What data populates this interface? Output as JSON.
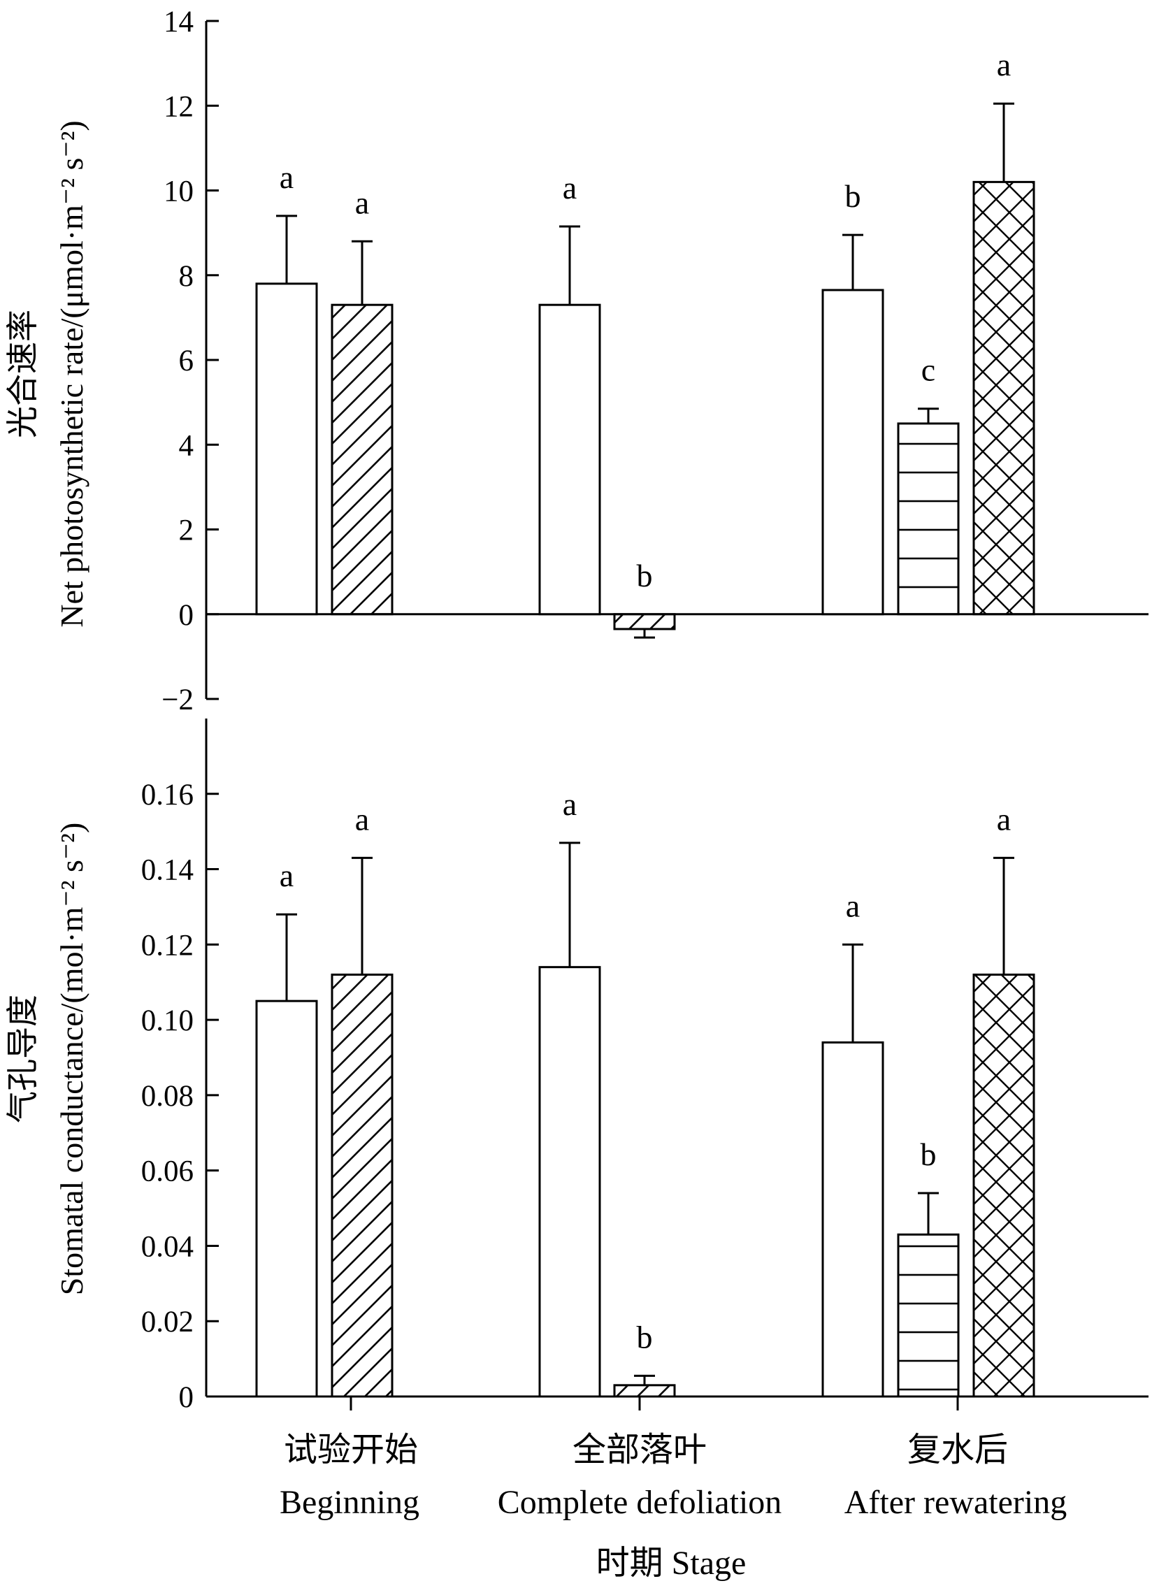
{
  "chart_data": [
    {
      "type": "bar",
      "ylabel_zh": "光合速率",
      "ylabel_en": "Net photosynthetic rate/(μmol·m⁻² s⁻²)",
      "ylim": [
        -2,
        14
      ],
      "yticks": [
        -2,
        0,
        2,
        4,
        6,
        8,
        10,
        12,
        14
      ],
      "ytick_labels": [
        "−2",
        "0",
        "2",
        "4",
        "6",
        "8",
        "10",
        "12",
        "14"
      ],
      "categories": [
        "Beginning",
        "Complete defoliation",
        "After rewatering"
      ],
      "bars": [
        {
          "group": 0,
          "slot": 0,
          "pattern": "plain",
          "value": 7.8,
          "error": 1.6,
          "sig": "a"
        },
        {
          "group": 0,
          "slot": 1,
          "pattern": "diagonal",
          "value": 7.3,
          "error": 1.5,
          "sig": "a"
        },
        {
          "group": 1,
          "slot": 0,
          "pattern": "plain",
          "value": 7.3,
          "error": 1.85,
          "sig": "a"
        },
        {
          "group": 1,
          "slot": 1,
          "pattern": "diagonal",
          "value": -0.35,
          "error": 0.2,
          "sig": "b"
        },
        {
          "group": 2,
          "slot": 0,
          "pattern": "plain",
          "value": 7.65,
          "error": 1.3,
          "sig": "b"
        },
        {
          "group": 2,
          "slot": 1,
          "pattern": "horizontal",
          "value": 4.5,
          "error": 0.35,
          "sig": "c"
        },
        {
          "group": 2,
          "slot": 2,
          "pattern": "crosshatch",
          "value": 10.2,
          "error": 1.85,
          "sig": "a"
        }
      ]
    },
    {
      "type": "bar",
      "ylabel_zh": "气孔导度",
      "ylabel_en": "Stomatal conductance/(mol·m⁻² s⁻²)",
      "ylim": [
        0,
        0.18
      ],
      "yticks": [
        0,
        0.02,
        0.04,
        0.06,
        0.08,
        0.1,
        0.12,
        0.14,
        0.16
      ],
      "ytick_labels": [
        "0",
        "0.02",
        "0.04",
        "0.06",
        "0.08",
        "0.10",
        "0.12",
        "0.14",
        "0.16"
      ],
      "categories": [
        "Beginning",
        "Complete defoliation",
        "After rewatering"
      ],
      "bars": [
        {
          "group": 0,
          "slot": 0,
          "pattern": "plain",
          "value": 0.105,
          "error": 0.023,
          "sig": "a"
        },
        {
          "group": 0,
          "slot": 1,
          "pattern": "diagonal",
          "value": 0.112,
          "error": 0.031,
          "sig": "a"
        },
        {
          "group": 1,
          "slot": 0,
          "pattern": "plain",
          "value": 0.114,
          "error": 0.033,
          "sig": "a"
        },
        {
          "group": 1,
          "slot": 1,
          "pattern": "diagonal",
          "value": 0.003,
          "error": 0.0025,
          "sig": "b"
        },
        {
          "group": 2,
          "slot": 0,
          "pattern": "plain",
          "value": 0.094,
          "error": 0.026,
          "sig": "a"
        },
        {
          "group": 2,
          "slot": 1,
          "pattern": "horizontal",
          "value": 0.043,
          "error": 0.011,
          "sig": "b"
        },
        {
          "group": 2,
          "slot": 2,
          "pattern": "crosshatch",
          "value": 0.112,
          "error": 0.031,
          "sig": "a"
        }
      ]
    }
  ],
  "x_axis": {
    "categories_zh": [
      "试验开始",
      "全部落叶",
      "复水后"
    ],
    "categories_en": [
      "Beginning",
      "Complete defoliation",
      "After rewatering"
    ],
    "xlabel": "时期 Stage"
  }
}
